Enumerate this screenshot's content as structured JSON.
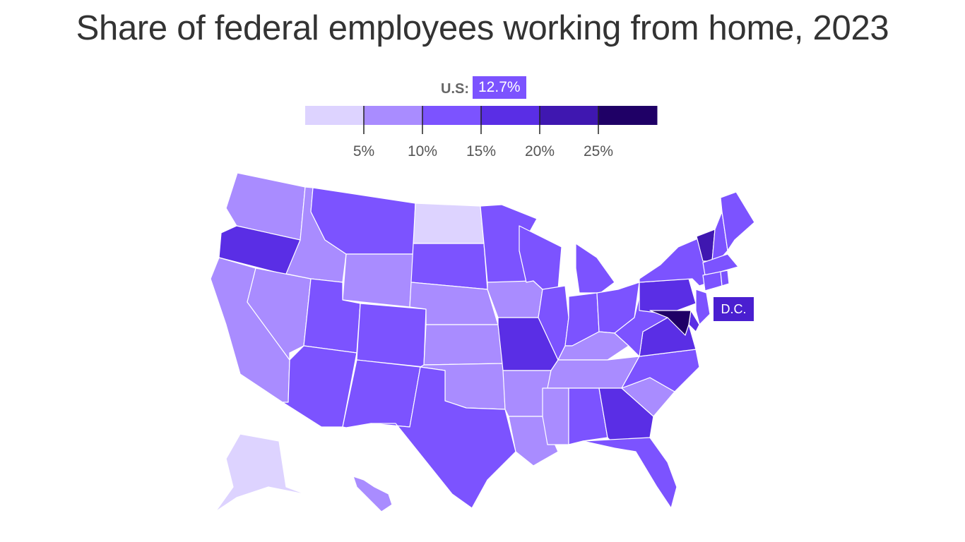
{
  "title": "Share of federal employees working from home, 2023",
  "us_average": {
    "label": "U.S:",
    "value": "12.7%"
  },
  "legend": {
    "colors": [
      "#ddd3ff",
      "#a98cff",
      "#7c53ff",
      "#5a2ee5",
      "#3f17b0",
      "#1f0066"
    ],
    "tick_labels": [
      "5%",
      "10%",
      "15%",
      "20%",
      "25%"
    ]
  },
  "callouts": {
    "dc": "D.C."
  },
  "state_bins": {
    "WA": 1,
    "OR": 3,
    "CA": 1,
    "NV": 1,
    "ID": 1,
    "MT": 2,
    "WY": 1,
    "UT": 2,
    "AZ": 2,
    "CO": 2,
    "NM": 2,
    "ND": 0,
    "SD": 2,
    "NE": 1,
    "KS": 1,
    "OK": 1,
    "TX": 2,
    "MN": 2,
    "IA": 1,
    "MO": 3,
    "AR": 1,
    "LA": 1,
    "WI": 2,
    "IL": 2,
    "MI": 2,
    "IN": 2,
    "OH": 2,
    "KY": 1,
    "TN": 1,
    "MS": 1,
    "AL": 2,
    "GA": 3,
    "FL": 2,
    "SC": 1,
    "NC": 2,
    "VA": 3,
    "WV": 2,
    "PA": 3,
    "NY": 2,
    "VT": 4,
    "NH": 2,
    "ME": 2,
    "MA": 2,
    "CT": 2,
    "RI": 2,
    "NJ": 2,
    "DE": 3,
    "MD": 5,
    "AK": 0,
    "HI": 1
  }
}
